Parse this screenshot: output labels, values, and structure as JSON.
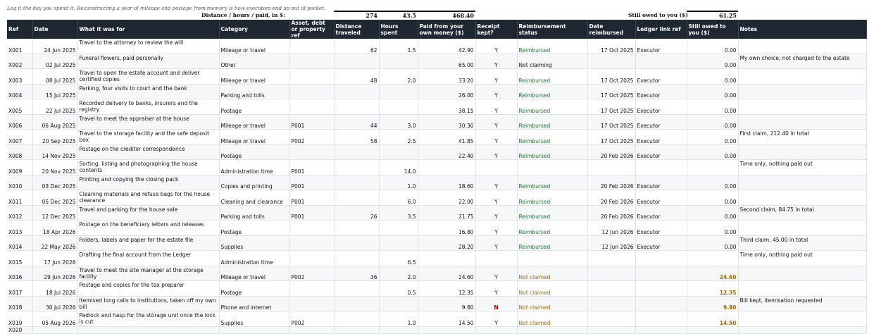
{
  "note": "Log it the day you spend it. Reconstructing a year of mileage and postage from memory is how executors end up out of pocket.",
  "totals": {
    "label": "Distance  /  hours  /  paid, in $:",
    "distance": "274",
    "hours": "43.5",
    "paid": "468.40",
    "owed_label": "Still owed to you ($)",
    "owed": "61.25"
  },
  "columns": [
    "Ref",
    "Date",
    "What it was for",
    "Category",
    "Asset, debt or property ref",
    "Distance traveled",
    "Hours spent",
    "Paid from your own money ($)",
    "Receipt kept?",
    "Reimbursement status",
    "Date reimbursed",
    "Ledger link ref",
    "Still owed to you ($)",
    "Notes"
  ],
  "rows": [
    {
      "ref": "X001",
      "date": "24 Jun 2025",
      "what": "Travel to the attorney to review the will",
      "category": "Mileage or travel",
      "asset": "",
      "distance": "62",
      "hours": "1.5",
      "paid": "42.90",
      "receipt": "Y",
      "status": "Reimbursed",
      "date_reimbursed": "17 Oct 2025",
      "ledger": "Executor",
      "owed": "0.00",
      "notes": ""
    },
    {
      "ref": "X002",
      "date": "02 Jul 2025",
      "what": "Funeral flowers, paid personally",
      "category": "Other",
      "asset": "",
      "distance": "",
      "hours": "",
      "paid": "65.00",
      "receipt": "Y",
      "status": "Not claiming",
      "date_reimbursed": "",
      "ledger": "",
      "owed": "0.00",
      "notes": "My own choice, not charged to the estate"
    },
    {
      "ref": "X003",
      "date": "08 Jul 2025",
      "what": "Travel to open the estate account and deliver certified copies",
      "category": "Mileage or travel",
      "asset": "",
      "distance": "48",
      "hours": "2.0",
      "paid": "33.20",
      "receipt": "Y",
      "status": "Reimbursed",
      "date_reimbursed": "17 Oct 2025",
      "ledger": "Executor",
      "owed": "0.00",
      "notes": ""
    },
    {
      "ref": "X004",
      "date": "15 Jul 2025",
      "what": "Parking, four visits to court and the bank",
      "category": "Parking and tolls",
      "asset": "",
      "distance": "",
      "hours": "",
      "paid": "26.00",
      "receipt": "Y",
      "status": "Reimbursed",
      "date_reimbursed": "17 Oct 2025",
      "ledger": "Executor",
      "owed": "0.00",
      "notes": ""
    },
    {
      "ref": "X005",
      "date": "22 Jul 2025",
      "what": "Recorded delivery to banks, insurers and the registry",
      "category": "Postage",
      "asset": "",
      "distance": "",
      "hours": "",
      "paid": "38.15",
      "receipt": "Y",
      "status": "Reimbursed",
      "date_reimbursed": "17 Oct 2025",
      "ledger": "Executor",
      "owed": "0.00",
      "notes": ""
    },
    {
      "ref": "X006",
      "date": "06 Aug 2025",
      "what": "Travel to meet the appraiser at the house",
      "category": "Mileage or travel",
      "asset": "P001",
      "distance": "44",
      "hours": "3.0",
      "paid": "30.30",
      "receipt": "Y",
      "status": "Reimbursed",
      "date_reimbursed": "17 Oct 2025",
      "ledger": "Executor",
      "owed": "0.00",
      "notes": ""
    },
    {
      "ref": "X007",
      "date": "20 Sep 2025",
      "what": "Travel to the storage facility and the safe deposit box",
      "category": "Mileage or travel",
      "asset": "P002",
      "distance": "58",
      "hours": "2.5",
      "paid": "41.85",
      "receipt": "Y",
      "status": "Reimbursed",
      "date_reimbursed": "17 Oct 2025",
      "ledger": "Executor",
      "owed": "0.00",
      "notes": "First claim, 212.40 in total"
    },
    {
      "ref": "X008",
      "date": "14 Nov 2025",
      "what": "Postage on the creditor correspondence",
      "category": "Postage",
      "asset": "",
      "distance": "",
      "hours": "",
      "paid": "22.40",
      "receipt": "Y",
      "status": "Reimbursed",
      "date_reimbursed": "20 Feb 2026",
      "ledger": "Executor",
      "owed": "0.00",
      "notes": ""
    },
    {
      "ref": "X009",
      "date": "20 Nov 2025",
      "what": "Sorting, listing and photographing the house contents",
      "category": "Administration time",
      "asset": "P001",
      "distance": "",
      "hours": "14.0",
      "paid": "",
      "receipt": "",
      "status": "",
      "date_reimbursed": "",
      "ledger": "",
      "owed": "",
      "notes": "Time only, nothing paid out"
    },
    {
      "ref": "X010",
      "date": "03 Dec 2025",
      "what": "Printing and copying the closing pack",
      "category": "Copies and printing",
      "asset": "P001",
      "distance": "",
      "hours": "1.0",
      "paid": "18.60",
      "receipt": "Y",
      "status": "Reimbursed",
      "date_reimbursed": "20 Feb 2026",
      "ledger": "Executor",
      "owed": "0.00",
      "notes": ""
    },
    {
      "ref": "X011",
      "date": "05 Dec 2025",
      "what": "Cleaning materials and refuse bags for the house clearance",
      "category": "Cleaning and clearance",
      "asset": "P001",
      "distance": "",
      "hours": "6.0",
      "paid": "22.00",
      "receipt": "Y",
      "status": "Reimbursed",
      "date_reimbursed": "20 Feb 2026",
      "ledger": "Executor",
      "owed": "0.00",
      "notes": ""
    },
    {
      "ref": "X012",
      "date": "12 Dec 2025",
      "what": "Travel and parking for the house sale",
      "category": "Parking and tolls",
      "asset": "P001",
      "distance": "26",
      "hours": "3.5",
      "paid": "21.75",
      "receipt": "Y",
      "status": "Reimbursed",
      "date_reimbursed": "20 Feb 2026",
      "ledger": "Executor",
      "owed": "0.00",
      "notes": "Second claim, 84.75 in total"
    },
    {
      "ref": "X013",
      "date": "18 Apr 2026",
      "what": "Postage on the beneficiary letters and releases",
      "category": "Postage",
      "asset": "",
      "distance": "",
      "hours": "",
      "paid": "16.80",
      "receipt": "Y",
      "status": "Reimbursed",
      "date_reimbursed": "12 Jun 2026",
      "ledger": "Executor",
      "owed": "0.00",
      "notes": ""
    },
    {
      "ref": "X014",
      "date": "22 May 2026",
      "what": "Folders, labels and paper for the estate file",
      "category": "Supplies",
      "asset": "",
      "distance": "",
      "hours": "",
      "paid": "28.20",
      "receipt": "Y",
      "status": "Reimbursed",
      "date_reimbursed": "12 Jun 2026",
      "ledger": "Executor",
      "owed": "0.00",
      "notes": "Third claim, 45.00 in total"
    },
    {
      "ref": "X015",
      "date": "17 Jun 2026",
      "what": "Drafting the final account from the Ledger",
      "category": "Administration time",
      "asset": "",
      "distance": "",
      "hours": "6.5",
      "paid": "",
      "receipt": "",
      "status": "",
      "date_reimbursed": "",
      "ledger": "",
      "owed": "",
      "notes": "Time only, nothing paid out"
    },
    {
      "ref": "X016",
      "date": "29 Jun 2026",
      "what": "Travel to meet the site manager at the storage facility",
      "category": "Mileage or travel",
      "asset": "P002",
      "distance": "36",
      "hours": "2.0",
      "paid": "24.60",
      "receipt": "Y",
      "status": "Not claimed",
      "date_reimbursed": "",
      "ledger": "",
      "owed": "24.60",
      "notes": ""
    },
    {
      "ref": "X017",
      "date": "18 Jul 2026",
      "what": "Postage and copies for the tax preparer",
      "category": "Postage",
      "asset": "",
      "distance": "",
      "hours": "0.5",
      "paid": "12.35",
      "receipt": "Y",
      "status": "Not claimed",
      "date_reimbursed": "",
      "ledger": "",
      "owed": "12.35",
      "notes": ""
    },
    {
      "ref": "X018",
      "date": "30 Jul 2026",
      "what": "Itemised long calls to institutions, taken off my own bill",
      "category": "Phone and internet",
      "asset": "",
      "distance": "",
      "hours": "",
      "paid": "9.80",
      "receipt": "N",
      "status": "Not claimed",
      "date_reimbursed": "",
      "ledger": "",
      "owed": "9.80",
      "notes": "Bill kept, itemisation requested"
    },
    {
      "ref": "X019",
      "date": "05 Aug 2026",
      "what": "Padlock and hasp for the storage unit once the lock is cut",
      "category": "Supplies",
      "asset": "P002",
      "distance": "",
      "hours": "1.0",
      "paid": "14.50",
      "receipt": "Y",
      "status": "Not claimed",
      "date_reimbursed": "",
      "ledger": "",
      "owed": "14.50",
      "notes": ""
    },
    {
      "ref": "X020",
      "date": "",
      "what": "",
      "category": "",
      "asset": "",
      "distance": "",
      "hours": "",
      "paid": "",
      "receipt": "",
      "status": "",
      "date_reimbursed": "",
      "ledger": "",
      "owed": "",
      "notes": ""
    }
  ]
}
